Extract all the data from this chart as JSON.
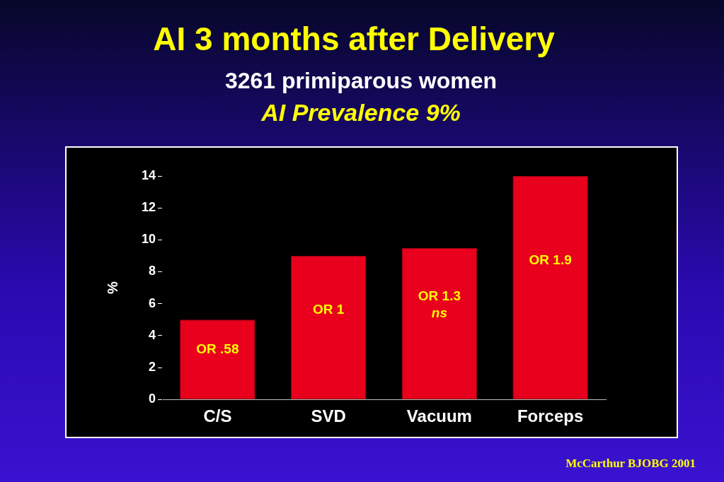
{
  "chart_data": {
    "type": "bar",
    "title": "AI 3 months after Delivery",
    "subtitle": "3261 primiparous women",
    "ylabel": "%",
    "categories": [
      "C/S",
      "SVD",
      "Vacuum",
      "Forceps"
    ],
    "values": [
      5,
      9,
      9.5,
      14
    ],
    "color": "#e8001c",
    "ylim": [
      0,
      14
    ],
    "yticks": [
      0,
      2,
      4,
      6,
      8,
      10,
      12,
      14
    ],
    "grid": false,
    "value_labels": [
      "OR .58",
      "OR 1",
      "OR 1.3\nns",
      "OR 1.9"
    ],
    "annotations": [
      "AI Prevalence 9%",
      "McCarthur BJOBG 2001"
    ]
  }
}
